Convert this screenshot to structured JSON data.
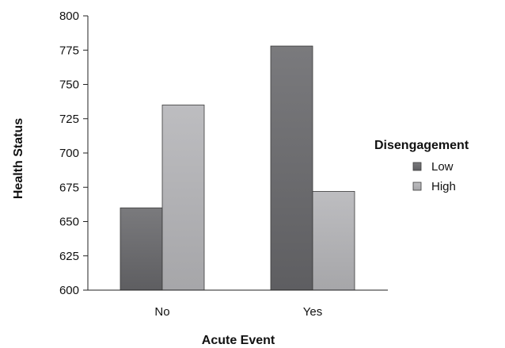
{
  "chart_data": {
    "type": "bar",
    "categories": [
      "No",
      "Yes"
    ],
    "series": [
      {
        "name": "Low",
        "values": [
          660,
          778
        ],
        "color": "#6b6b6e"
      },
      {
        "name": "High",
        "values": [
          735,
          672
        ],
        "color": "#b3b3b6"
      }
    ],
    "xlabel": "Acute Event",
    "ylabel": "Health Status",
    "ylim": [
      600,
      800
    ],
    "yticks": [
      600,
      625,
      650,
      675,
      700,
      725,
      750,
      775,
      800
    ],
    "legend": {
      "title": "Disengagement",
      "placement": "right"
    },
    "grid": false
  }
}
